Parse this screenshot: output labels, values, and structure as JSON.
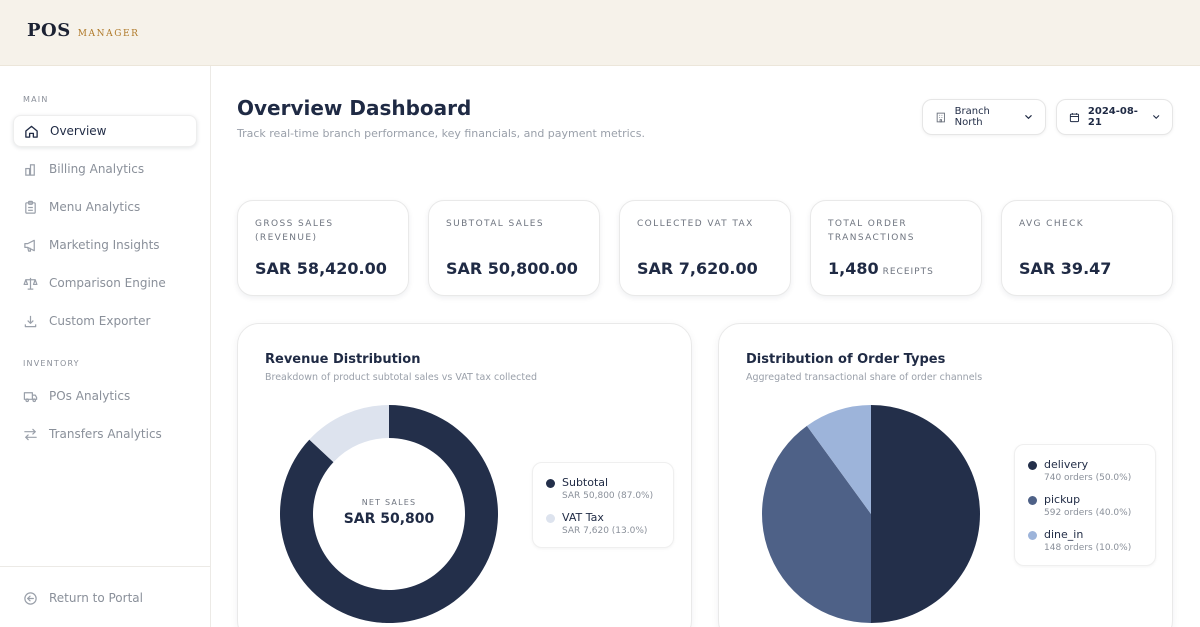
{
  "brand": {
    "name": "POS",
    "sub": "MANAGER"
  },
  "sidebar": {
    "section_main": "MAIN",
    "section_inventory": "INVENTORY",
    "items": [
      {
        "label": "Overview",
        "icon": "home-icon"
      },
      {
        "label": "Billing Analytics",
        "icon": "bar-chart-icon"
      },
      {
        "label": "Menu Analytics",
        "icon": "clipboard-icon"
      },
      {
        "label": "Marketing Insights",
        "icon": "megaphone-icon"
      },
      {
        "label": "Comparison Engine",
        "icon": "scale-icon"
      },
      {
        "label": "Custom Exporter",
        "icon": "download-icon"
      },
      {
        "label": "POs Analytics",
        "icon": "truck-icon"
      },
      {
        "label": "Transfers Analytics",
        "icon": "transfer-arrows-icon"
      }
    ],
    "return_label": "Return to Portal"
  },
  "header": {
    "title": "Overview Dashboard",
    "subtitle": "Track real-time branch performance, key financials, and payment metrics.",
    "branch": "Branch North",
    "date": "2024-08-21"
  },
  "kpis": [
    {
      "label": "GROSS SALES (REVENUE)",
      "value": "SAR 58,420.00",
      "unit": ""
    },
    {
      "label": "SUBTOTAL SALES",
      "value": "SAR 50,800.00",
      "unit": ""
    },
    {
      "label": "COLLECTED VAT TAX",
      "value": "SAR 7,620.00",
      "unit": ""
    },
    {
      "label": "TOTAL ORDER TRANSACTIONS",
      "value": "1,480",
      "unit": "RECEIPTS"
    },
    {
      "label": "AVG CHECK",
      "value": "SAR 39.47",
      "unit": ""
    }
  ],
  "revenue_card": {
    "title": "Revenue Distribution",
    "subtitle": "Breakdown of product subtotal sales vs VAT tax collected",
    "center_label": "NET SALES",
    "center_value": "SAR 50,800",
    "legend": [
      {
        "name": "Subtotal",
        "detail": "SAR 50,800 (87.0%)"
      },
      {
        "name": "VAT Tax",
        "detail": "SAR 7,620 (13.0%)"
      }
    ]
  },
  "orders_card": {
    "title": "Distribution of Order Types",
    "subtitle": "Aggregated transactional share of order channels",
    "legend": [
      {
        "name": "delivery",
        "detail": "740 orders (50.0%)"
      },
      {
        "name": "pickup",
        "detail": "592 orders (40.0%)"
      },
      {
        "name": "dine_in",
        "detail": "148 orders (10.0%)"
      }
    ]
  },
  "colors": {
    "navy": "#232f4a",
    "slate": "#4e6187",
    "light_blue": "#9db4da",
    "pale": "#dde3ee"
  },
  "chart_data": [
    {
      "type": "pie",
      "variant": "donut",
      "title": "Revenue Distribution",
      "categories": [
        "Subtotal",
        "VAT Tax"
      ],
      "values": [
        50800,
        7620
      ],
      "percent": [
        87.0,
        13.0
      ],
      "colors": [
        "#232f4a",
        "#dde3ee"
      ]
    },
    {
      "type": "pie",
      "title": "Distribution of Order Types",
      "categories": [
        "delivery",
        "pickup",
        "dine_in"
      ],
      "values": [
        740,
        592,
        148
      ],
      "percent": [
        50.0,
        40.0,
        10.0
      ],
      "colors": [
        "#232f4a",
        "#4e6187",
        "#9db4da"
      ]
    }
  ]
}
